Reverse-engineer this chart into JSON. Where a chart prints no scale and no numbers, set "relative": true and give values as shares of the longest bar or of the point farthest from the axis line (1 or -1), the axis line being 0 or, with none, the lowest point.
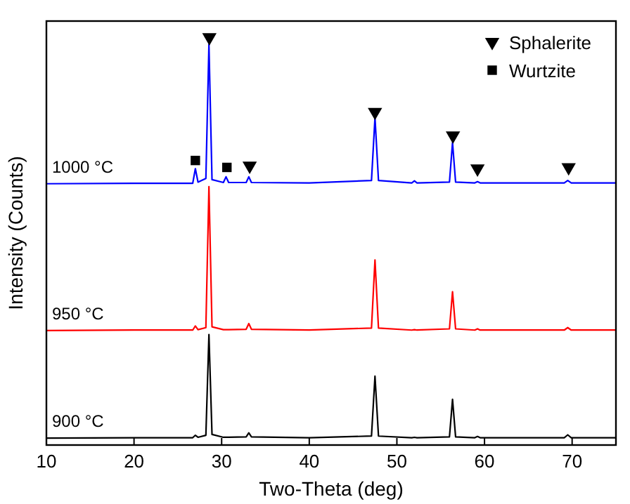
{
  "chart_data": {
    "type": "line",
    "xlabel": "Two-Theta (deg)",
    "ylabel": "Intensity (Counts)",
    "relative": true,
    "xlim": [
      10,
      75
    ],
    "xticks": [
      10,
      20,
      30,
      40,
      50,
      60,
      70
    ],
    "legend": "top right",
    "x": [
      10,
      20,
      26.7,
      27.0,
      27.3,
      28.2,
      28.55,
      28.9,
      30.2,
      30.5,
      30.8,
      32.8,
      33.1,
      33.4,
      40,
      47.1,
      47.5,
      47.9,
      51.7,
      52,
      52.3,
      56.0,
      56.35,
      56.7,
      58.9,
      59.2,
      59.5,
      69.1,
      69.5,
      69.9,
      75
    ],
    "series": [
      {
        "name": "900 °C",
        "color": "#000000",
        "values": [
          0.017,
          0.018,
          0.018,
          0.024,
          0.019,
          0.024,
          0.271,
          0.026,
          0.019,
          0.019,
          0.019,
          0.02,
          0.03,
          0.02,
          0.018,
          0.022,
          0.169,
          0.022,
          0.018,
          0.019,
          0.018,
          0.02,
          0.112,
          0.02,
          0.018,
          0.021,
          0.018,
          0.018,
          0.025,
          0.018,
          0.018
        ]
      },
      {
        "name": "950 °C",
        "color": "#ff0000",
        "values": [
          0.281,
          0.282,
          0.282,
          0.292,
          0.283,
          0.288,
          0.634,
          0.29,
          0.283,
          0.283,
          0.283,
          0.284,
          0.298,
          0.284,
          0.282,
          0.287,
          0.454,
          0.287,
          0.282,
          0.283,
          0.282,
          0.285,
          0.376,
          0.285,
          0.282,
          0.285,
          0.282,
          0.282,
          0.288,
          0.282,
          0.282
        ]
      },
      {
        "name": "1000 °C",
        "color": "#0000ff",
        "values": [
          0.641,
          0.642,
          0.642,
          0.678,
          0.645,
          0.654,
          0.983,
          0.651,
          0.644,
          0.658,
          0.644,
          0.644,
          0.658,
          0.644,
          0.643,
          0.649,
          0.803,
          0.649,
          0.643,
          0.648,
          0.643,
          0.645,
          0.742,
          0.645,
          0.643,
          0.646,
          0.643,
          0.643,
          0.649,
          0.643,
          0.643
        ]
      },
      {
        "name": "Sphalerite",
        "type": "scatter",
        "marker": "triangle",
        "color": "#000000",
        "x": [
          28.6,
          33.2,
          47.5,
          56.4,
          59.2,
          69.6
        ],
        "values": [
          1,
          0.685,
          0.817,
          0.759,
          0.678,
          0.681
        ]
      },
      {
        "name": "Wurtzite",
        "type": "scatter",
        "marker": "square",
        "color": "#000000",
        "x": [
          27.0,
          30.6
        ],
        "values": [
          0.698,
          0.681
        ]
      }
    ]
  }
}
